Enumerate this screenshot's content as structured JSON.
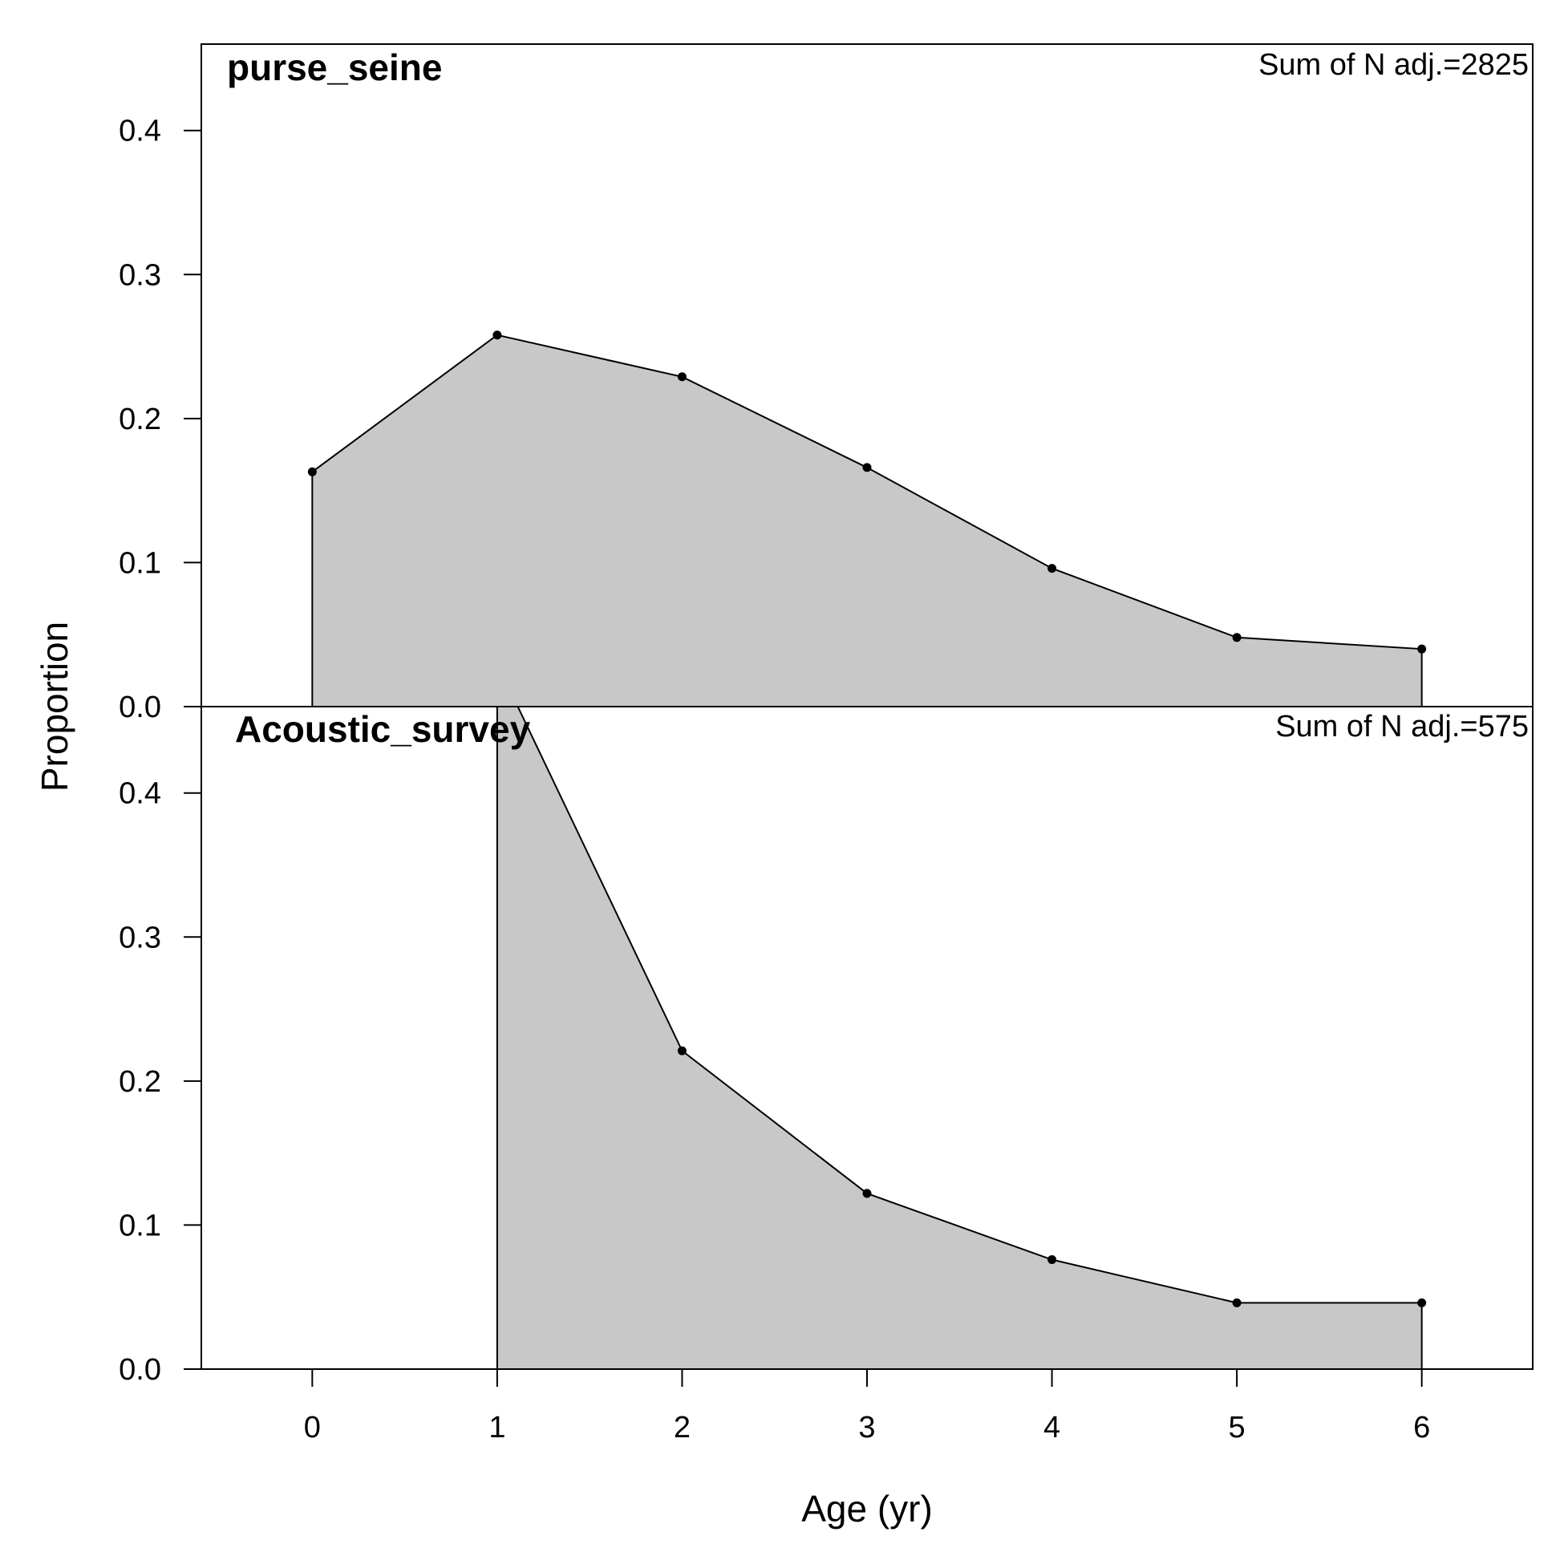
{
  "chart_data": {
    "type": "area",
    "xlabel": "Age (yr)",
    "ylabel": "Proportion",
    "x_ticks": [
      "0",
      "1",
      "2",
      "3",
      "4",
      "5",
      "6"
    ],
    "xlim": [
      -0.6,
      6.6
    ],
    "y_ticks": [
      "0.0",
      "0.1",
      "0.2",
      "0.3",
      "0.4"
    ],
    "ylim": [
      0,
      0.46
    ],
    "fill_color": "#c8c8c8",
    "line_color": "#000000",
    "panels": [
      {
        "title": "purse_seine",
        "note": "Sum of N adj.=2825",
        "x": [
          0,
          1,
          2,
          3,
          4,
          5,
          6
        ],
        "y": [
          0.163,
          0.258,
          0.229,
          0.166,
          0.096,
          0.048,
          0.04
        ]
      },
      {
        "title": "Acoustic_survey",
        "note": "Sum of N adj.=575",
        "x": [
          1,
          2,
          3,
          4,
          5,
          6
        ],
        "y": [
          0.49,
          0.221,
          0.122,
          0.076,
          0.046,
          0.046
        ]
      }
    ]
  }
}
